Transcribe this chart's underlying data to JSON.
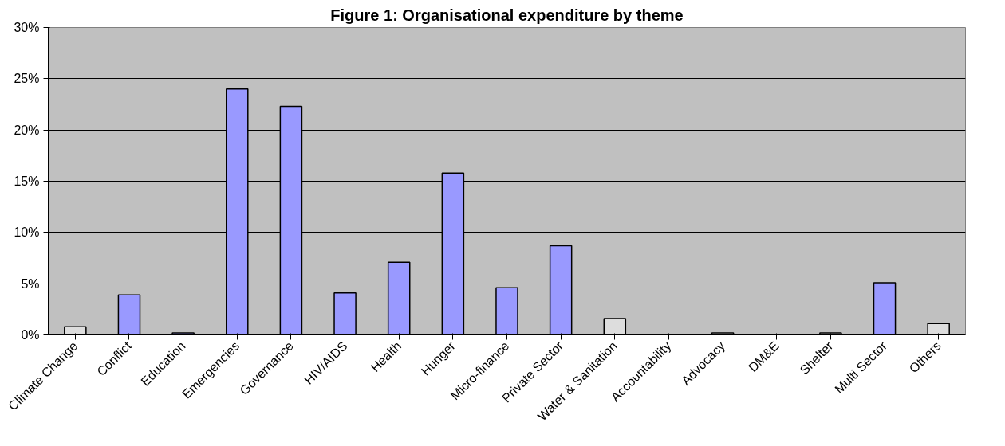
{
  "chart_data": {
    "type": "bar",
    "title": "Figure 1: Organisational expenditure by theme",
    "categories": [
      "Climate Change",
      "Conflict",
      "Education",
      "Emergencies",
      "Governance",
      "HIV/AIDS",
      "Health",
      "Hunger",
      "Micro-finance",
      "Private Sector",
      "Water & Sanitation",
      "Accountability",
      "Advocacy",
      "DM&E",
      "Shelter",
      "Multi Sector",
      "Others"
    ],
    "values": [
      0.8,
      3.9,
      0.2,
      24,
      22.3,
      4.1,
      7.1,
      15.8,
      4.6,
      8.7,
      1.6,
      0,
      0.2,
      0,
      0.2,
      5.1,
      1.1
    ],
    "colors": [
      "#dddddd",
      "#9999ff",
      "#9999ff",
      "#9999ff",
      "#9999ff",
      "#9999ff",
      "#9999ff",
      "#9999ff",
      "#9999ff",
      "#9999ff",
      "#dddddd",
      "#dddddd",
      "#dddddd",
      "#dddddd",
      "#dddddd",
      "#9999ff",
      "#dddddd"
    ],
    "ylim": [
      0,
      30
    ],
    "yticks": [
      {
        "value": 0,
        "label": "0%"
      },
      {
        "value": 5,
        "label": "5%"
      },
      {
        "value": 10,
        "label": "10%"
      },
      {
        "value": 15,
        "label": "15%"
      },
      {
        "value": 20,
        "label": "20%"
      },
      {
        "value": 25,
        "label": "25%"
      },
      {
        "value": 30,
        "label": "30%"
      }
    ],
    "grid": "y"
  }
}
